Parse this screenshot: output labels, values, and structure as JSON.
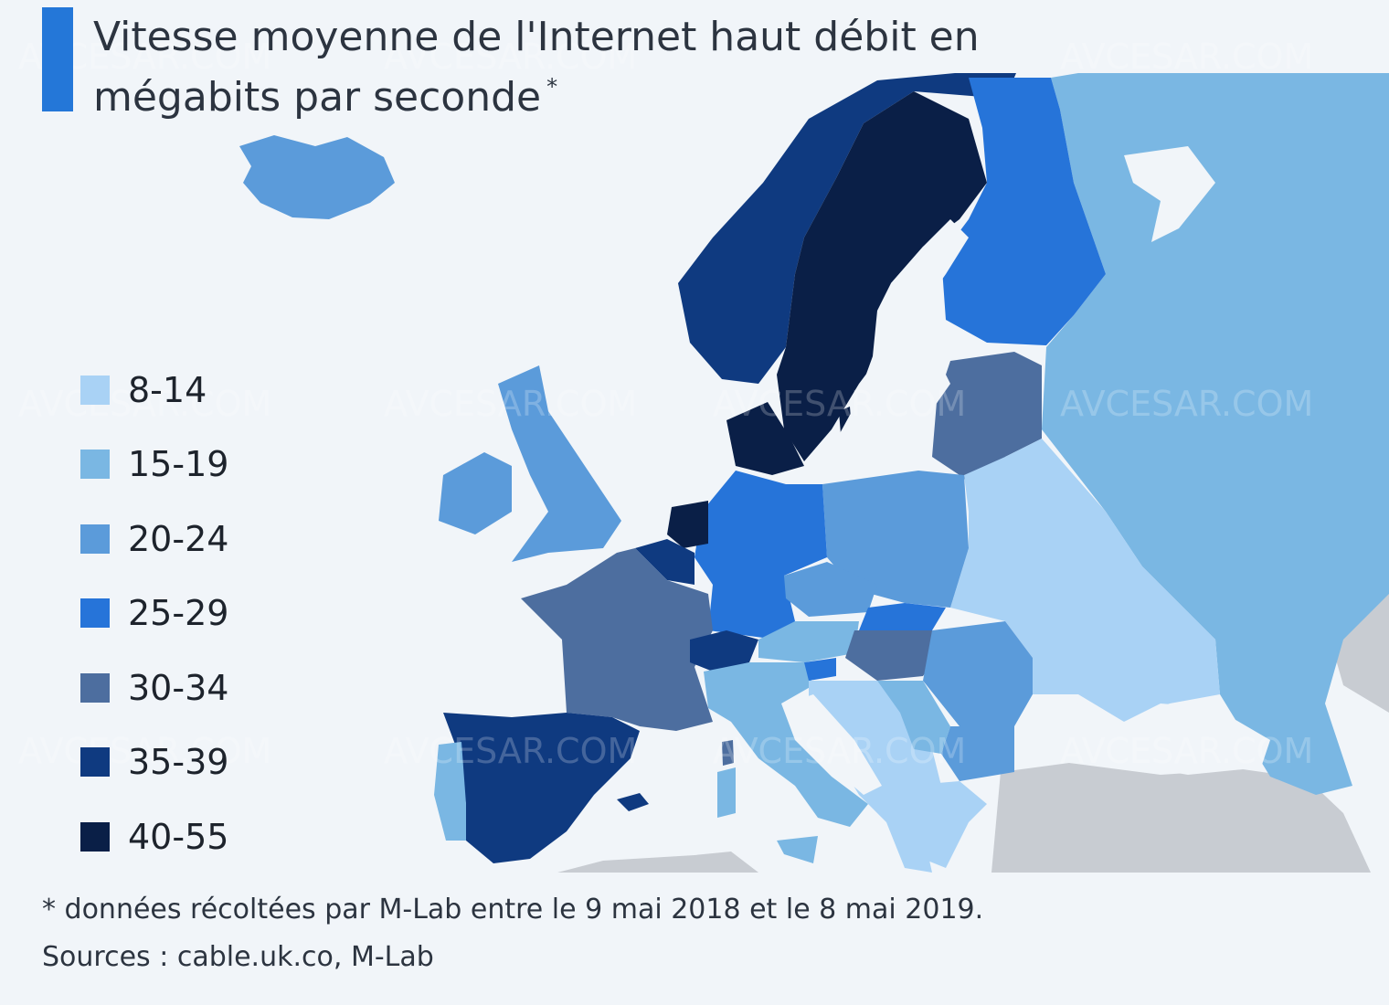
{
  "title": "Vitesse moyenne de l'Internet haut débit en mégabits par seconde",
  "title_mark": "*",
  "legend": [
    {
      "label": "8-14",
      "color": "#a9d2f5"
    },
    {
      "label": "15-19",
      "color": "#7ab7e3"
    },
    {
      "label": "20-24",
      "color": "#5b9bda"
    },
    {
      "label": "25-29",
      "color": "#2674d9"
    },
    {
      "label": "30-34",
      "color": "#4d6e9f"
    },
    {
      "label": "35-39",
      "color": "#0f3a80"
    },
    {
      "label": "40-55",
      "color": "#0a1f47"
    }
  ],
  "footnote": "* données récoltées par M-Lab entre le 9 mai 2018 et le 8 mai 2019.",
  "sources": "Sources : cable.uk.co, M-Lab",
  "watermark": "AVCESAR.COM",
  "colors": {
    "background": "#f1f5f9",
    "no_data": "#c8ccd2",
    "accent": "#2477d8"
  }
}
